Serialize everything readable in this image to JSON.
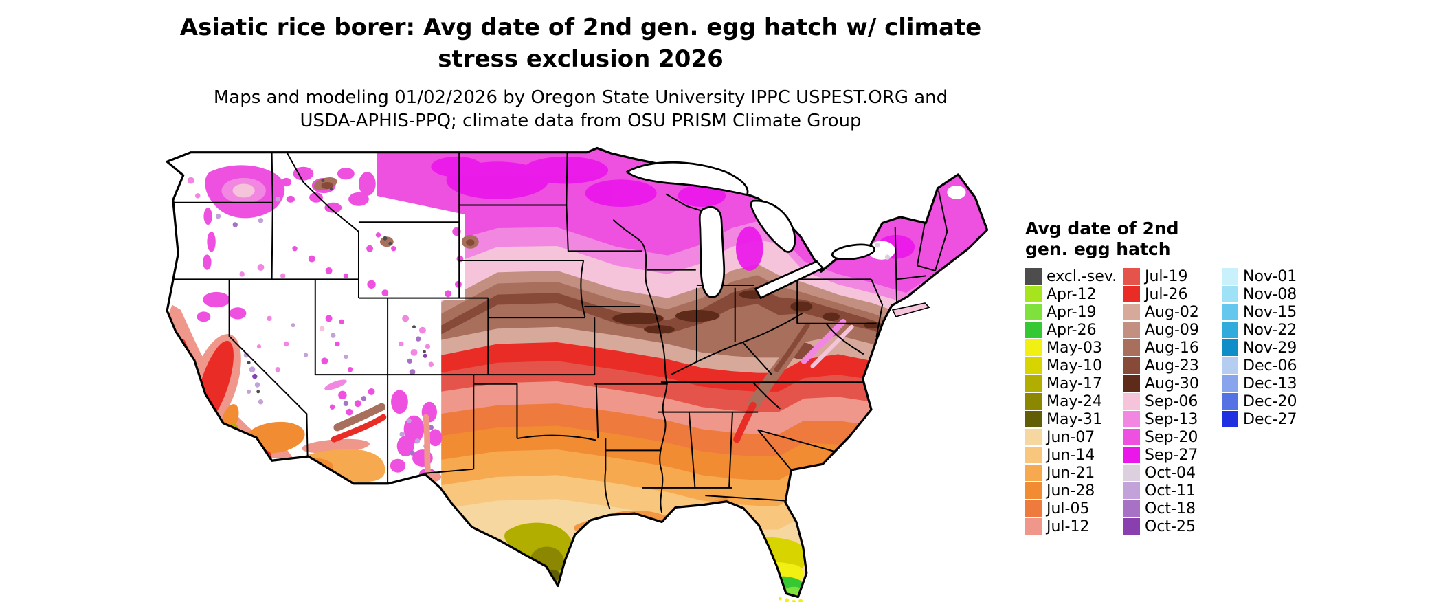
{
  "title_line1": "Asiatic rice borer: Avg date of 2nd gen. egg hatch w/ climate",
  "title_line2": "stress exclusion 2026",
  "subtitle_line1": "Maps and modeling 01/02/2026 by Oregon State University IPPC USPEST.ORG and",
  "subtitle_line2": "USDA-APHIS-PPQ; climate data from OSU PRISM Climate Group",
  "legend": {
    "title_line1": "Avg date of 2nd",
    "title_line2": "gen. egg hatch",
    "columns": [
      {
        "entries": [
          {
            "label": "excl.-sev.",
            "color": "#4d4d4d"
          },
          {
            "label": "Apr-12",
            "color": "#a6e41e"
          },
          {
            "label": "Apr-19",
            "color": "#7fe23c"
          },
          {
            "label": "Apr-26",
            "color": "#35c832"
          },
          {
            "label": "May-03",
            "color": "#f2ef12"
          },
          {
            "label": "May-10",
            "color": "#d8d400"
          },
          {
            "label": "May-17",
            "color": "#b2ae00"
          },
          {
            "label": "May-24",
            "color": "#8b8700"
          },
          {
            "label": "May-31",
            "color": "#615e06"
          },
          {
            "label": "Jun-07",
            "color": "#f6d7a0"
          },
          {
            "label": "Jun-14",
            "color": "#f8c77d"
          },
          {
            "label": "Jun-21",
            "color": "#f7a94f"
          },
          {
            "label": "Jun-28",
            "color": "#f18c33"
          },
          {
            "label": "Jul-05",
            "color": "#ee7a3d"
          },
          {
            "label": "Jul-12",
            "color": "#ef978a"
          }
        ]
      },
      {
        "entries": [
          {
            "label": "Jul-19",
            "color": "#e4544a"
          },
          {
            "label": "Jul-26",
            "color": "#ea2c26"
          },
          {
            "label": "Aug-02",
            "color": "#d7a99b"
          },
          {
            "label": "Aug-09",
            "color": "#c38f80"
          },
          {
            "label": "Aug-16",
            "color": "#a86f5d"
          },
          {
            "label": "Aug-23",
            "color": "#874a38"
          },
          {
            "label": "Aug-30",
            "color": "#5e2a19"
          },
          {
            "label": "Sep-06",
            "color": "#f5c3da"
          },
          {
            "label": "Sep-13",
            "color": "#f287e2"
          },
          {
            "label": "Sep-20",
            "color": "#ee50df"
          },
          {
            "label": "Sep-27",
            "color": "#ea16ea"
          },
          {
            "label": "Oct-04",
            "color": "#dcd0de"
          },
          {
            "label": "Oct-11",
            "color": "#c2a2d8"
          },
          {
            "label": "Oct-18",
            "color": "#a771c5"
          },
          {
            "label": "Oct-25",
            "color": "#8940ae"
          }
        ]
      },
      {
        "entries": [
          {
            "label": "Nov-01",
            "color": "#c9f1fb"
          },
          {
            "label": "Nov-08",
            "color": "#9fe1f7"
          },
          {
            "label": "Nov-15",
            "color": "#64c8ee"
          },
          {
            "label": "Nov-22",
            "color": "#30abdc"
          },
          {
            "label": "Nov-29",
            "color": "#0e8dc8"
          },
          {
            "label": "Dec-06",
            "color": "#b4cdf0"
          },
          {
            "label": "Dec-13",
            "color": "#88a4ec"
          },
          {
            "label": "Dec-20",
            "color": "#5472e4"
          },
          {
            "label": "Dec-27",
            "color": "#1e30df"
          }
        ]
      }
    ]
  }
}
